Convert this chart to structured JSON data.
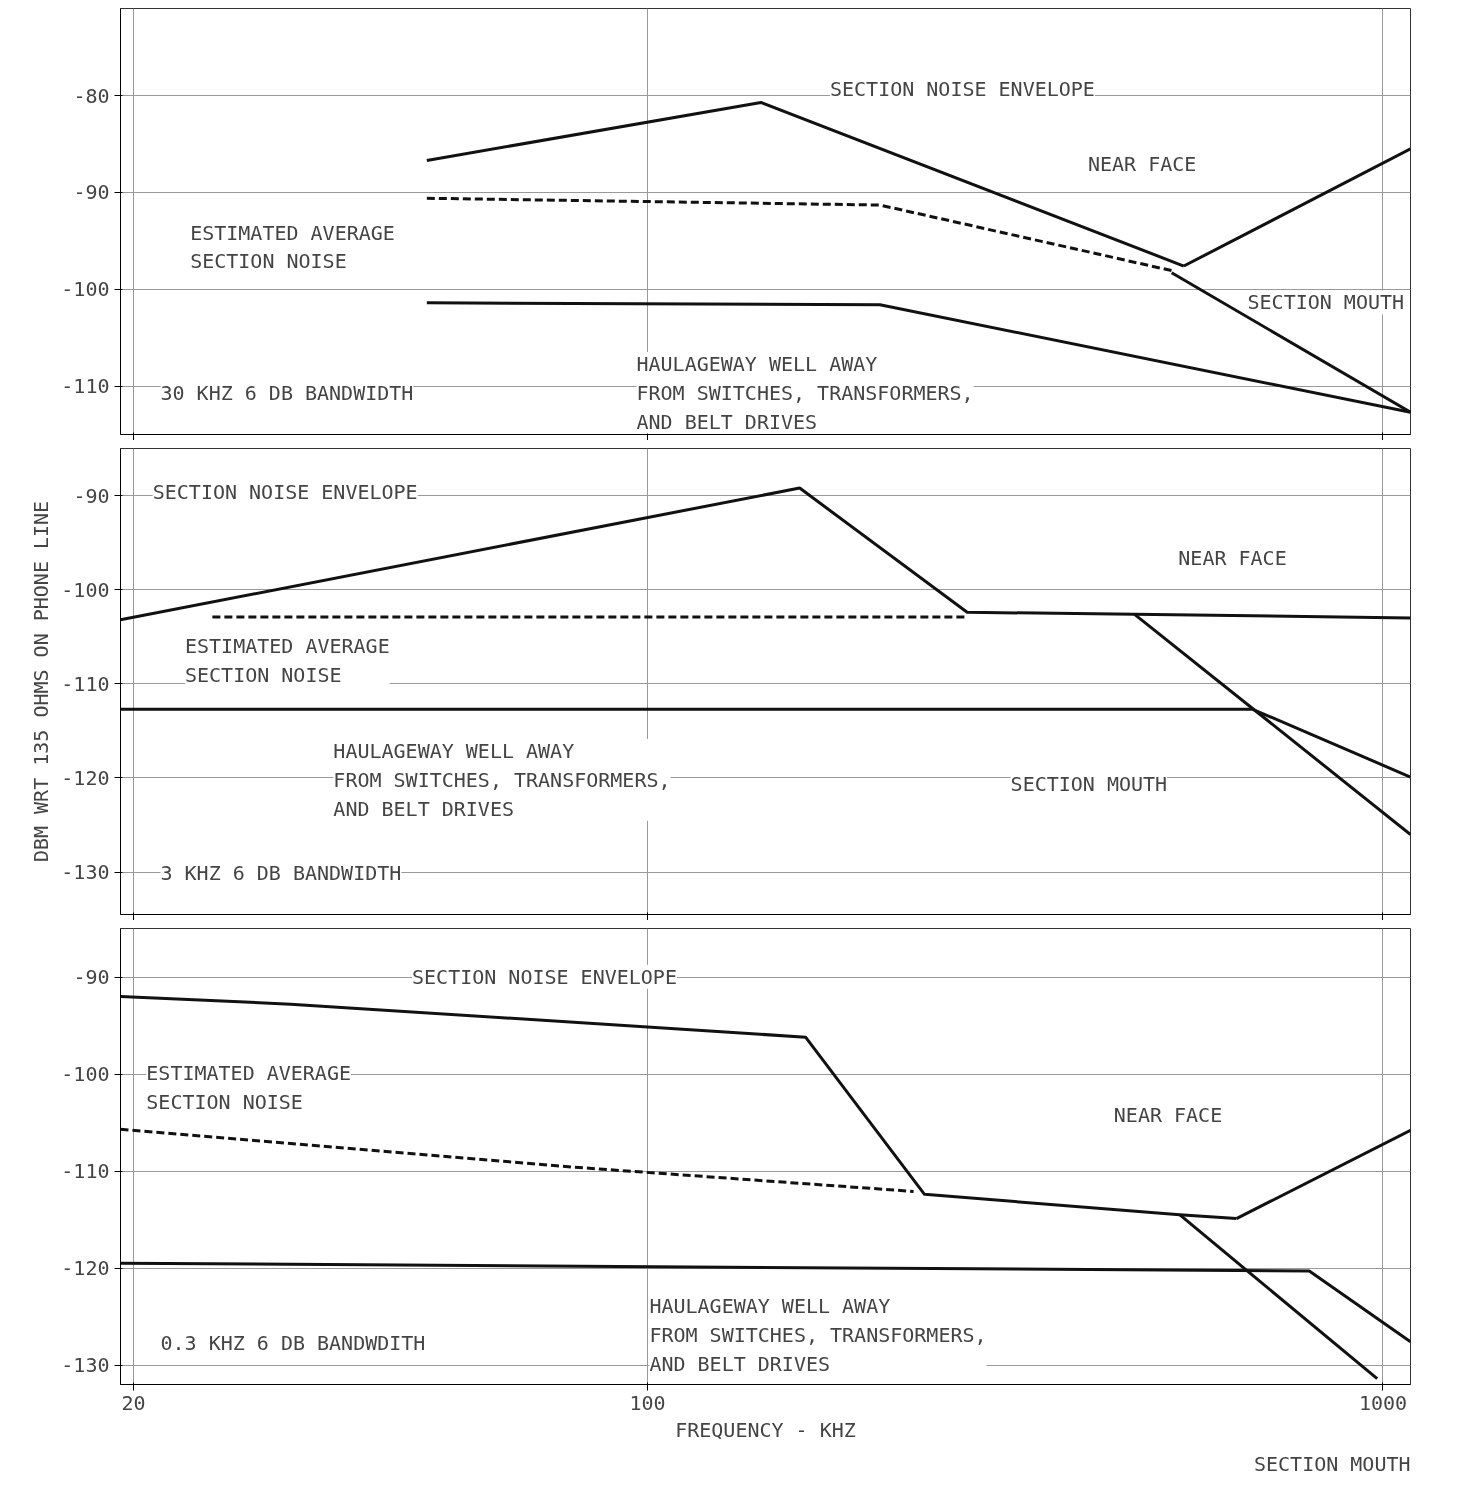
{
  "chart_data": [
    {
      "type": "line",
      "subtitle": "30 KHZ 6 DB BANDWIDTH",
      "log": "x",
      "xlim": [
        19.2,
        1090
      ],
      "xticks": [
        20,
        100,
        1000
      ],
      "ylim": [
        -115,
        -71
      ],
      "yticks": [
        -80,
        -90,
        -100,
        -110
      ],
      "grid": true,
      "tick_labels": "y",
      "series": [
        {
          "color": "#111111",
          "line_style": "solid",
          "x": [
            50.1,
            142.6,
            536
          ],
          "values": [
            -86.7,
            -80.7,
            -97.6
          ]
        },
        {
          "color": "#111111",
          "line_style": "solid",
          "x": [
            536,
            1090
          ],
          "values": [
            -97.6,
            -85.5
          ]
        },
        {
          "color": "#111111",
          "line_style": "solid",
          "x": [
            516,
            1090
          ],
          "values": [
            -98.3,
            -112.7
          ]
        },
        {
          "color": "#111111",
          "line_style": "dashed",
          "x": [
            50.1,
            207,
            518
          ],
          "values": [
            -90.6,
            -91.3,
            -98.1
          ]
        },
        {
          "color": "#111111",
          "line_style": "solid",
          "x": [
            50.1,
            207,
            1090
          ],
          "values": [
            -101.4,
            -101.6,
            -112.7
          ]
        }
      ],
      "annotations": [
        "SECTION NOISE ENVELOPE",
        "NEAR FACE",
        "ESTIMATED AVERAGE\nSECTION NOISE",
        "SECTION MOUTH",
        "HAULAGEWAY WELL AWAY\nFROM SWITCHES, TRANSFORMERS,\nAND BELT DRIVES"
      ]
    },
    {
      "type": "line",
      "subtitle": "3 KHZ 6 DB BANDWIDTH",
      "ylabel": "DBM WRT 135 OHMS ON PHONE LINE",
      "log": "x",
      "xlim": [
        19.2,
        1090
      ],
      "xticks": [
        20,
        100,
        1000
      ],
      "ylim": [
        -134.5,
        -85
      ],
      "yticks": [
        -90,
        -100,
        -110,
        -120,
        -130
      ],
      "grid": true,
      "tick_labels": "y",
      "series": [
        {
          "color": "#111111",
          "line_style": "solid",
          "x": [
            19.2,
            161,
            272,
            459,
            1090
          ],
          "values": [
            -103.2,
            -89.2,
            -102.4,
            -102.6,
            -103.0
          ]
        },
        {
          "color": "#111111",
          "line_style": "solid",
          "x": [
            459,
            1090
          ],
          "values": [
            -102.6,
            -126.0
          ]
        },
        {
          "color": "#111111",
          "line_style": "dashed",
          "x": [
            25.6,
            272
          ],
          "values": [
            -102.9,
            -102.9
          ]
        },
        {
          "color": "#111111",
          "line_style": "solid",
          "x": [
            19.2,
            665,
            1090
          ],
          "values": [
            -112.7,
            -112.7,
            -119.9
          ]
        }
      ],
      "annotations": [
        "SECTION NOISE ENVELOPE",
        "NEAR FACE",
        "ESTIMATED AVERAGE\nSECTION NOISE",
        "HAULAGEWAY WELL AWAY\nFROM SWITCHES, TRANSFORMERS,\nAND BELT DRIVES",
        "SECTION MOUTH"
      ]
    },
    {
      "type": "line",
      "subtitle": "0.3 KHZ 6 DB BANDWDITH",
      "xlabel": "FREQUENCY - KHZ",
      "log": "x",
      "xlim": [
        19.2,
        1090
      ],
      "xticks": [
        20,
        100,
        1000
      ],
      "ylim": [
        -132,
        -85
      ],
      "yticks": [
        -90,
        -100,
        -110,
        -120,
        -130
      ],
      "grid": true,
      "series": [
        {
          "color": "#111111",
          "line_style": "solid",
          "x": [
            19.2,
            32.7,
            164,
            238,
            529,
            632
          ],
          "values": [
            -92.0,
            -92.8,
            -96.2,
            -112.4,
            -114.5,
            -114.9
          ]
        },
        {
          "color": "#111111",
          "line_style": "solid",
          "x": [
            632,
            1090
          ],
          "values": [
            -114.9,
            -105.8
          ]
        },
        {
          "color": "#111111",
          "line_style": "solid",
          "x": [
            529,
            982
          ],
          "values": [
            -114.5,
            -131.4
          ]
        },
        {
          "color": "#111111",
          "line_style": "dashed",
          "x": [
            19.2,
            79.4,
            230
          ],
          "values": [
            -105.7,
            -109.6,
            -112.1
          ]
        },
        {
          "color": "#111111",
          "line_style": "solid",
          "x": [
            19.2,
            794,
            1090
          ],
          "values": [
            -119.5,
            -120.3,
            -127.6
          ]
        }
      ],
      "annotations": [
        "SECTION NOISE ENVELOPE",
        "ESTIMATED AVERAGE\nSECTION NOISE",
        "NEAR FACE",
        "HAULAGEWAY WELL AWAY\nFROM SWITCHES, TRANSFORMERS,\nAND BELT DRIVES",
        "SECTION MOUTH"
      ]
    }
  ]
}
